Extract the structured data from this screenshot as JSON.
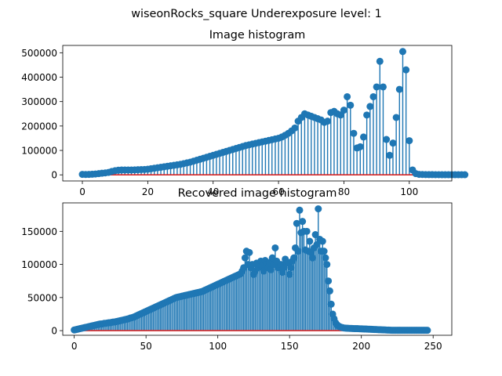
{
  "figure": {
    "suptitle": "wiseonRocks_square Underexposure level: 1"
  },
  "chart_data": [
    {
      "type": "stem",
      "title": "Image histogram",
      "xlabel": "",
      "ylabel": "",
      "xlim": [
        -6,
        113
      ],
      "ylim": [
        -25000,
        530000
      ],
      "xticks": [
        0,
        20,
        40,
        60,
        80,
        100
      ],
      "yticks": [
        0,
        100000,
        200000,
        300000,
        400000,
        500000
      ],
      "x_start": 0,
      "values": [
        2000,
        1500,
        1800,
        2500,
        3500,
        5000,
        6500,
        8000,
        10000,
        14000,
        17000,
        19000,
        20000,
        20000,
        20000,
        20000,
        20500,
        21000,
        21500,
        22000,
        23000,
        25000,
        27000,
        29000,
        31000,
        33000,
        35000,
        37000,
        39000,
        41000,
        43000,
        46000,
        49000,
        52000,
        56000,
        60000,
        64000,
        68000,
        72000,
        76000,
        80000,
        84000,
        88000,
        92000,
        96000,
        100000,
        104000,
        108000,
        112000,
        116000,
        120000,
        123000,
        126000,
        129000,
        132000,
        135000,
        138000,
        141000,
        144000,
        147000,
        150000,
        155000,
        162000,
        170000,
        180000,
        192000,
        220000,
        235000,
        250000,
        245000,
        240000,
        235000,
        230000,
        225000,
        215000,
        220000,
        255000,
        260000,
        250000,
        245000,
        265000,
        320000,
        285000,
        170000,
        110000,
        115000,
        155000,
        245000,
        280000,
        320000,
        360000,
        465000,
        360000,
        145000,
        80000,
        130000,
        235000,
        350000,
        505000,
        430000,
        140000,
        20000,
        5000,
        2000,
        1500,
        1200,
        1000,
        900,
        800,
        700,
        600,
        500,
        500,
        500,
        500,
        500,
        500,
        500
      ],
      "series_color": "#1f77b4",
      "baseline_color": "#d62728",
      "grid": false
    },
    {
      "type": "stem",
      "title": "Recovered image histogram",
      "xlabel": "",
      "ylabel": "",
      "xlim": [
        -8,
        263
      ],
      "ylim": [
        -7000,
        193000
      ],
      "xticks": [
        0,
        50,
        100,
        150,
        200,
        250
      ],
      "yticks": [
        0,
        50000,
        100000,
        150000
      ],
      "x_start": 0,
      "series_color": "#1f77b4",
      "baseline_color": "#d62728",
      "grid": false,
      "values": [
        1000,
        1500,
        2000,
        2500,
        3000,
        3500,
        4000,
        4500,
        5000,
        5500,
        6000,
        6500,
        7000,
        7500,
        8000,
        8500,
        9000,
        9500,
        10000,
        10000,
        10500,
        11000,
        11000,
        11500,
        12000,
        12000,
        12500,
        13000,
        13000,
        13500,
        14000,
        14500,
        15000,
        15500,
        16000,
        16500,
        17000,
        17500,
        18000,
        19000,
        19500,
        20000,
        21000,
        22000,
        23000,
        24000,
        25000,
        26000,
        27000,
        28000,
        29000,
        30000,
        31000,
        32000,
        33000,
        34000,
        35000,
        36000,
        37000,
        38000,
        39000,
        40000,
        41000,
        42000,
        43000,
        44000,
        45000,
        46000,
        47000,
        48000,
        49000,
        50000,
        50500,
        51000,
        51500,
        52000,
        52500,
        53000,
        53500,
        54000,
        54500,
        55000,
        55500,
        56000,
        56500,
        57000,
        57500,
        58000,
        58500,
        59000,
        60000,
        61000,
        62000,
        63000,
        64000,
        65000,
        66000,
        67000,
        68000,
        69000,
        70000,
        71000,
        72000,
        73000,
        74000,
        75000,
        76000,
        77000,
        78000,
        79000,
        80000,
        81000,
        82000,
        83000,
        84000,
        85000,
        86000,
        90000,
        95000,
        110000,
        120000,
        100000,
        118000,
        95000,
        100000,
        85000,
        90000,
        102000,
        95000,
        100000,
        105000,
        98000,
        90000,
        106000,
        100000,
        95000,
        103000,
        92000,
        110000,
        100000,
        125000,
        105000,
        95000,
        97000,
        100000,
        88000,
        95000,
        108000,
        102000,
        103000,
        85000,
        95000,
        105000,
        110000,
        125000,
        162000,
        120000,
        182000,
        148000,
        165000,
        150000,
        122000,
        150000,
        120000,
        135000,
        118000,
        110000,
        125000,
        145000,
        130000,
        184000,
        138000,
        120000,
        135000,
        120000,
        110000,
        100000,
        75000,
        60000,
        40000,
        25000,
        18000,
        12000,
        9000,
        7000,
        6000,
        5000,
        4500,
        4000,
        3800,
        3600,
        3500,
        3400,
        3300,
        3200,
        3100,
        3000,
        3000,
        2900,
        2800,
        2700,
        2600,
        2500,
        2400,
        2300,
        2200,
        2100,
        2000,
        1900,
        1800,
        1700,
        1600,
        1500,
        1400,
        1300,
        1200,
        1100,
        1000,
        900,
        800,
        700,
        600,
        500,
        500,
        500,
        500,
        500,
        500,
        500,
        500,
        500,
        500,
        500,
        500,
        500,
        500,
        500,
        500,
        500,
        500,
        500,
        500,
        500,
        500,
        500,
        500,
        500
      ]
    }
  ]
}
